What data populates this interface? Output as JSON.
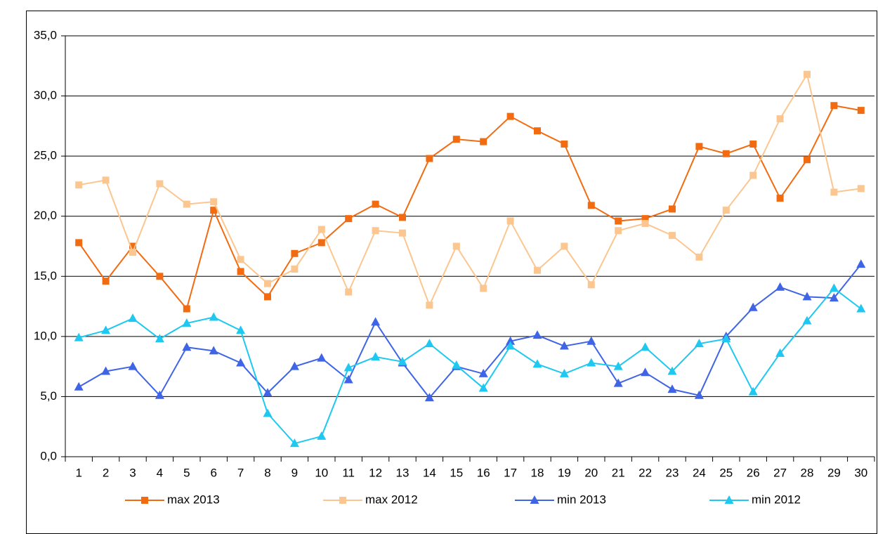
{
  "chart_data": {
    "type": "line",
    "categories": [
      "1",
      "2",
      "3",
      "4",
      "5",
      "6",
      "7",
      "8",
      "9",
      "10",
      "11",
      "12",
      "13",
      "14",
      "15",
      "16",
      "17",
      "18",
      "19",
      "20",
      "21",
      "22",
      "23",
      "24",
      "25",
      "26",
      "27",
      "28",
      "29",
      "30"
    ],
    "series": [
      {
        "name": "max 2013",
        "color": "#f26b10",
        "marker": "square",
        "values": [
          17.8,
          14.6,
          17.5,
          15.0,
          12.3,
          20.5,
          15.4,
          13.3,
          16.9,
          17.8,
          19.8,
          21.0,
          19.9,
          24.8,
          26.4,
          26.2,
          28.3,
          27.1,
          26.0,
          20.9,
          19.6,
          19.8,
          20.6,
          25.8,
          25.2,
          26.0,
          21.5,
          24.7,
          29.2,
          28.8
        ]
      },
      {
        "name": "max 2012",
        "color": "#fbc690",
        "marker": "square",
        "values": [
          22.6,
          23.0,
          17.0,
          22.7,
          21.0,
          21.2,
          16.4,
          14.4,
          15.6,
          18.9,
          13.7,
          18.8,
          18.6,
          12.6,
          17.5,
          14.0,
          19.6,
          15.5,
          17.5,
          14.3,
          18.8,
          19.4,
          18.4,
          16.6,
          20.5,
          23.4,
          28.1,
          31.8,
          22.0,
          22.3
        ]
      },
      {
        "name": "min 2013",
        "color": "#3f64e6",
        "marker": "triangle",
        "values": [
          5.8,
          7.1,
          7.5,
          5.1,
          9.1,
          8.8,
          7.8,
          5.3,
          7.5,
          8.2,
          6.4,
          11.2,
          7.8,
          4.9,
          7.5,
          6.9,
          9.6,
          10.1,
          9.2,
          9.6,
          6.1,
          7.0,
          5.6,
          5.1,
          10.0,
          12.4,
          14.1,
          13.3,
          13.2,
          16.0
        ]
      },
      {
        "name": "min 2012",
        "color": "#1ec8f0",
        "marker": "triangle",
        "values": [
          9.9,
          10.5,
          11.5,
          9.8,
          11.1,
          11.6,
          10.5,
          3.6,
          1.1,
          1.7,
          7.4,
          8.3,
          7.9,
          9.4,
          7.6,
          5.7,
          9.2,
          7.7,
          6.9,
          7.8,
          7.5,
          9.1,
          7.1,
          9.4,
          9.8,
          5.4,
          8.6,
          11.3,
          14.0,
          12.3
        ]
      }
    ],
    "ylim": [
      0,
      35
    ],
    "yticks": [
      {
        "value": 0,
        "label": "0,0"
      },
      {
        "value": 5,
        "label": "5,0"
      },
      {
        "value": 10,
        "label": "10,0"
      },
      {
        "value": 15,
        "label": "15,0"
      },
      {
        "value": 20,
        "label": "20,0"
      },
      {
        "value": 25,
        "label": "25,0"
      },
      {
        "value": 30,
        "label": "30,0"
      },
      {
        "value": 35,
        "label": "35,0"
      }
    ],
    "grid": true,
    "legend": "bottom"
  }
}
